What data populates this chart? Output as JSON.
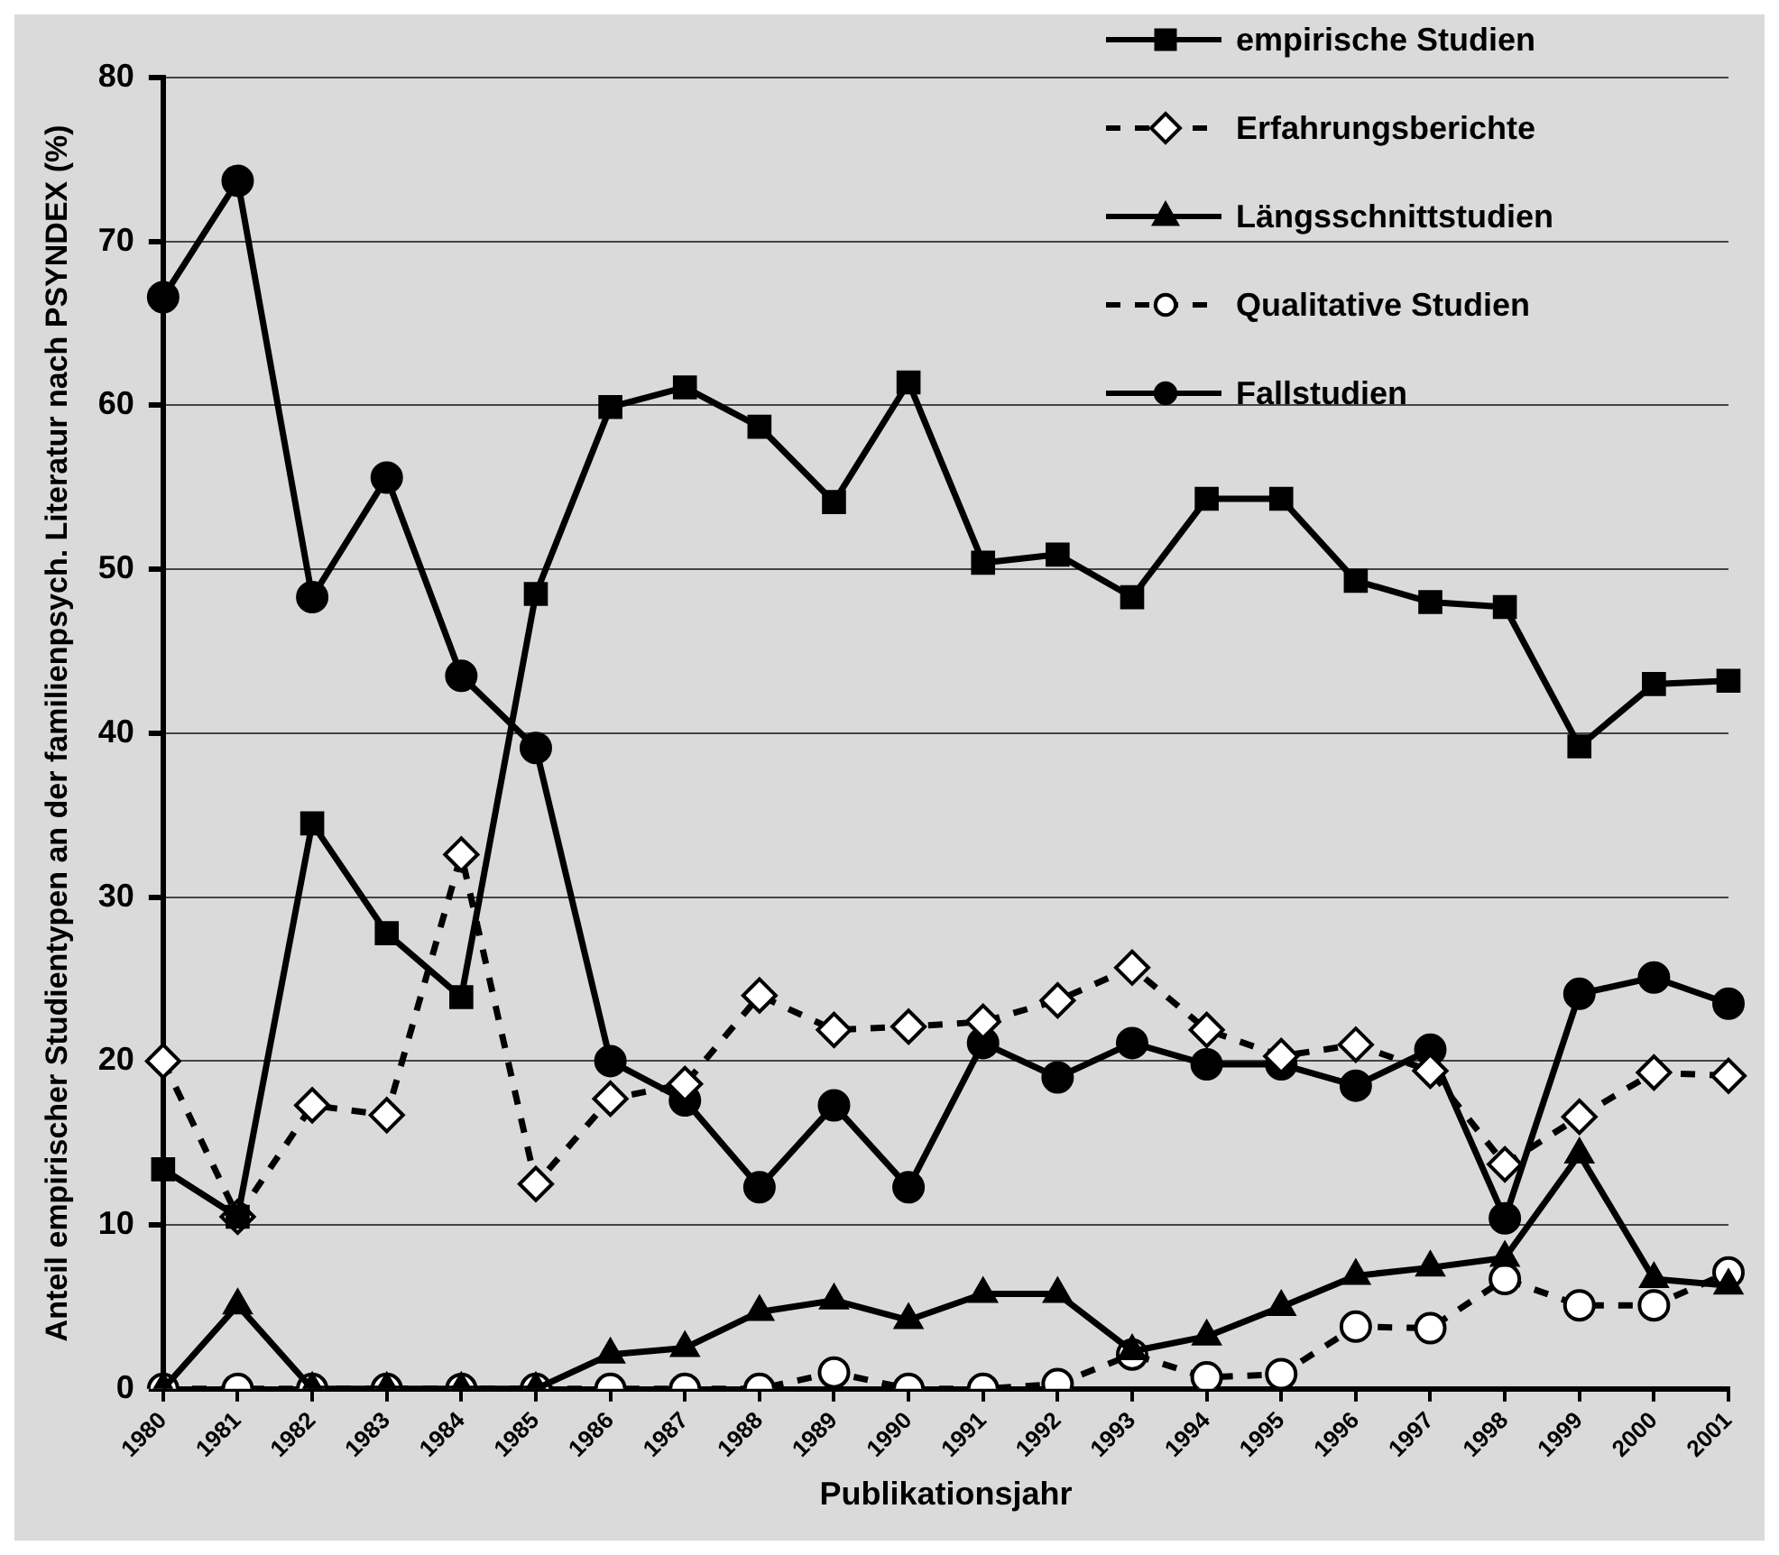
{
  "chart_data": {
    "type": "line",
    "ylabel": "Anteil empirischer Studientypen an der familienpsych. Literatur nach PSYNDEX (%)",
    "xlabel": "Publikationsjahr",
    "categories": [
      "1980",
      "1981",
      "1982",
      "1983",
      "1984",
      "1985",
      "1986",
      "1987",
      "1988",
      "1989",
      "1990",
      "1991",
      "1992",
      "1993",
      "1994",
      "1995",
      "1996",
      "1997",
      "1998",
      "1999",
      "2000",
      "2001"
    ],
    "series": [
      {
        "name": "empirische Studien",
        "color": "#000000",
        "marker": "square",
        "line_style": "solid",
        "values": [
          13.4,
          10.5,
          34.5,
          27.8,
          23.9,
          48.5,
          59.9,
          61.1,
          58.7,
          54.1,
          61.4,
          50.4,
          50.9,
          48.3,
          54.3,
          54.3,
          49.3,
          48.0,
          47.7,
          39.2,
          43.0,
          43.2
        ]
      },
      {
        "name": "Erfahrungsberichte",
        "color": "#000000",
        "marker": "diamond",
        "line_style": "dashed",
        "values": [
          20.0,
          10.5,
          17.3,
          16.7,
          32.6,
          12.5,
          17.7,
          18.6,
          24.0,
          21.9,
          22.1,
          22.4,
          23.7,
          25.7,
          21.9,
          20.3,
          21.0,
          19.4,
          13.7,
          16.6,
          19.3,
          19.1
        ]
      },
      {
        "name": "Längsschnittstudien",
        "color": "#000000",
        "marker": "triangle",
        "line_style": "solid",
        "values": [
          0,
          5.1,
          0,
          0,
          0,
          0,
          2.1,
          2.5,
          4.7,
          5.4,
          4.2,
          5.8,
          5.8,
          2.3,
          3.2,
          5.0,
          6.9,
          7.4,
          8.0,
          14.3,
          6.7,
          6.3
        ]
      },
      {
        "name": "Qualitative Studien",
        "color": "#000000",
        "marker": "circle",
        "line_style": "dashed",
        "values": [
          0,
          0,
          0,
          0,
          0,
          0,
          0,
          0,
          0,
          1.0,
          0,
          0,
          0.3,
          2.1,
          0.7,
          0.9,
          3.8,
          3.7,
          6.7,
          5.1,
          5.1,
          7.1
        ]
      },
      {
        "name": "Fallstudien",
        "color": "#000000",
        "marker": "circle",
        "line_style": "solid",
        "values": [
          66.6,
          73.7,
          48.3,
          55.6,
          43.5,
          39.1,
          20.0,
          17.6,
          12.3,
          17.3,
          12.3,
          21.1,
          19.0,
          21.1,
          19.8,
          19.8,
          18.5,
          20.7,
          10.4,
          24.1,
          25.1,
          23.5
        ]
      }
    ],
    "ylim": [
      0,
      80
    ],
    "yticks": [
      0,
      10,
      20,
      30,
      40,
      50,
      60,
      70,
      80
    ],
    "grid": "y",
    "legend": "top right"
  }
}
